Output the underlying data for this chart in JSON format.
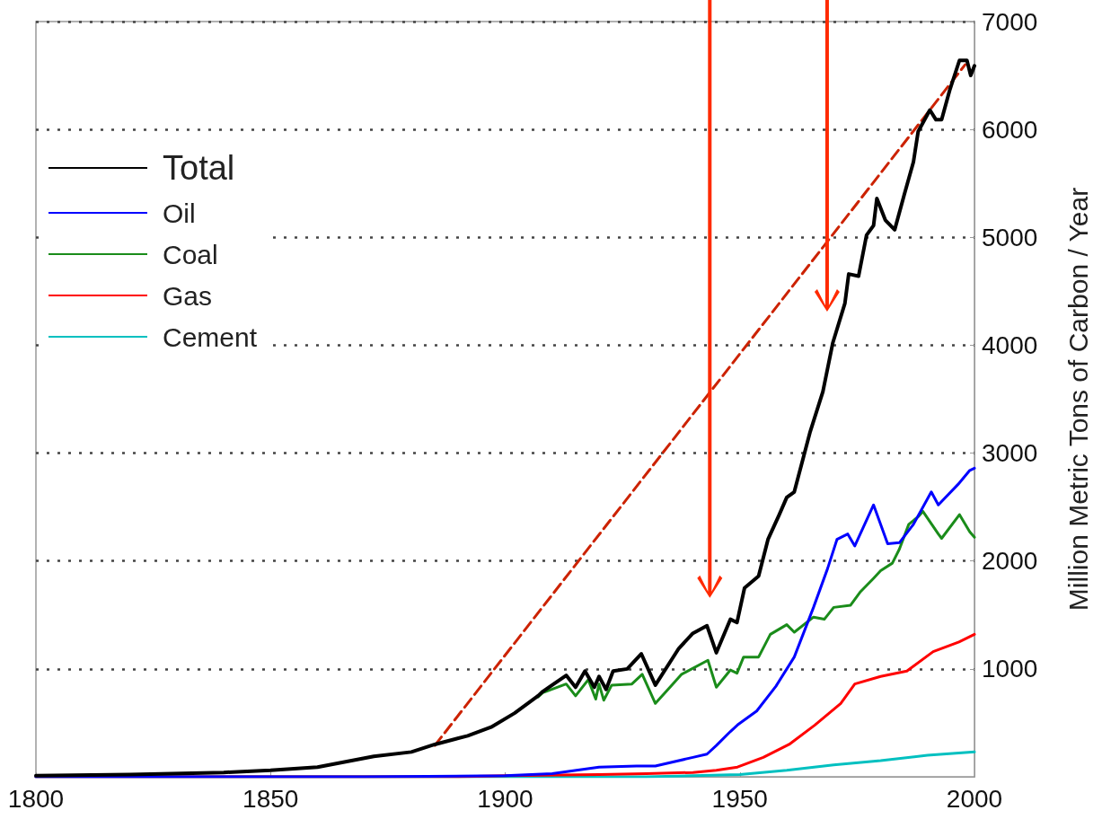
{
  "chart_data": {
    "type": "line",
    "ylabel": "Million Metric Tons of Carbon / Year",
    "xlim": [
      1800,
      2000
    ],
    "xticks": [
      1800,
      1850,
      1900,
      1950,
      2000
    ],
    "ylim": [
      0,
      7000
    ],
    "yticks": [
      1000,
      2000,
      3000,
      4000,
      5000,
      6000,
      7000
    ],
    "grid": "y",
    "legend": "top left",
    "marker": "none",
    "line_style": "solid",
    "series": [
      {
        "name": "Total",
        "color": "#000000",
        "x": [
          1800,
          1820,
          1840,
          1850,
          1860,
          1872,
          1880,
          1885,
          1892,
          1897,
          1902,
          1907,
          1908,
          1913,
          1915,
          1917,
          1919,
          1920,
          1921.5,
          1923,
          1926,
          1929,
          1932,
          1937,
          1940,
          1943,
          1945,
          1948,
          1949.4,
          1951,
          1954,
          1956,
          1958.4,
          1960,
          1961.6,
          1965,
          1967.7,
          1969.8,
          1972.4,
          1973.2,
          1975.3,
          1977,
          1978.5,
          1979.2,
          1981,
          1983,
          1985,
          1987,
          1988,
          1990.5,
          1991.8,
          1993,
          1994.7,
          1996.8,
          1998.4,
          1999.2,
          2000
        ],
        "values": [
          10,
          20,
          40,
          60,
          90,
          190,
          230,
          300,
          380,
          460,
          590,
          750,
          790,
          940,
          830,
          980,
          830,
          930,
          810,
          980,
          1000,
          1140,
          850,
          1190,
          1330,
          1400,
          1150,
          1460,
          1430,
          1750,
          1860,
          2200,
          2430,
          2590,
          2640,
          3200,
          3570,
          4020,
          4390,
          4660,
          4640,
          5020,
          5110,
          5360,
          5160,
          5070,
          5390,
          5700,
          5980,
          6180,
          6090,
          6090,
          6360,
          6640,
          6640,
          6500,
          6590
        ]
      },
      {
        "name": "Oil",
        "color": "#0000ff",
        "x": [
          1800,
          1870,
          1900,
          1910,
          1920,
          1928,
          1932,
          1940,
          1943,
          1945,
          1948,
          1949.5,
          1953.6,
          1957.7,
          1961.6,
          1965.7,
          1968.7,
          1970.7,
          1973,
          1974.5,
          1978.5,
          1981.5,
          1984,
          1987,
          1990.8,
          1992.3,
          1996.5,
          1999,
          2000
        ],
        "values": [
          0,
          0,
          10,
          30,
          90,
          100,
          100,
          180,
          210,
          290,
          420,
          480,
          610,
          840,
          1110,
          1570,
          1930,
          2200,
          2250,
          2140,
          2520,
          2160,
          2170,
          2340,
          2640,
          2520,
          2710,
          2840,
          2860
        ]
      },
      {
        "name": "Coal",
        "color": "#1a8c1a",
        "x": [
          1907,
          1908,
          1913,
          1915,
          1917.7,
          1919.3,
          1920,
          1921,
          1922.7,
          1927,
          1929.2,
          1932,
          1937.6,
          1943.2,
          1945,
          1948,
          1949.4,
          1950.8,
          1954,
          1956.5,
          1960,
          1961.6,
          1965.7,
          1968,
          1970,
          1973.6,
          1975.6,
          1978.5,
          1980,
          1982.5,
          1984,
          1986,
          1988,
          1989,
          1992.3,
          1993,
          1996.8,
          1999,
          2000
        ],
        "values": [
          740,
          780,
          860,
          750,
          900,
          720,
          860,
          710,
          850,
          860,
          950,
          680,
          950,
          1080,
          830,
          990,
          960,
          1110,
          1110,
          1320,
          1410,
          1340,
          1480,
          1460,
          1570,
          1590,
          1710,
          1840,
          1910,
          1980,
          2110,
          2340,
          2410,
          2460,
          2250,
          2210,
          2430,
          2270,
          2220
        ]
      },
      {
        "name": "Gas",
        "color": "#ff0000",
        "x": [
          1800,
          1890,
          1900,
          1920,
          1930,
          1940,
          1945,
          1949.5,
          1955,
          1960.5,
          1966,
          1971.5,
          1974.5,
          1980,
          1985.6,
          1991.2,
          1996.7,
          2000
        ],
        "values": [
          0,
          0,
          10,
          20,
          30,
          40,
          60,
          90,
          180,
          300,
          480,
          680,
          860,
          930,
          980,
          1160,
          1250,
          1320
        ]
      },
      {
        "name": "Cement",
        "color": "#00c0c0",
        "x": [
          1800,
          1930,
          1950,
          1960,
          1970,
          1980,
          1990,
          2000
        ],
        "values": [
          0,
          0,
          20,
          60,
          110,
          150,
          200,
          230
        ]
      },
      {
        "type": "line",
        "color": "#cc2200",
        "line_style": "dashed",
        "x": [
          1885,
          1998
        ],
        "values": [
          290,
          6600
        ]
      }
    ]
  }
}
